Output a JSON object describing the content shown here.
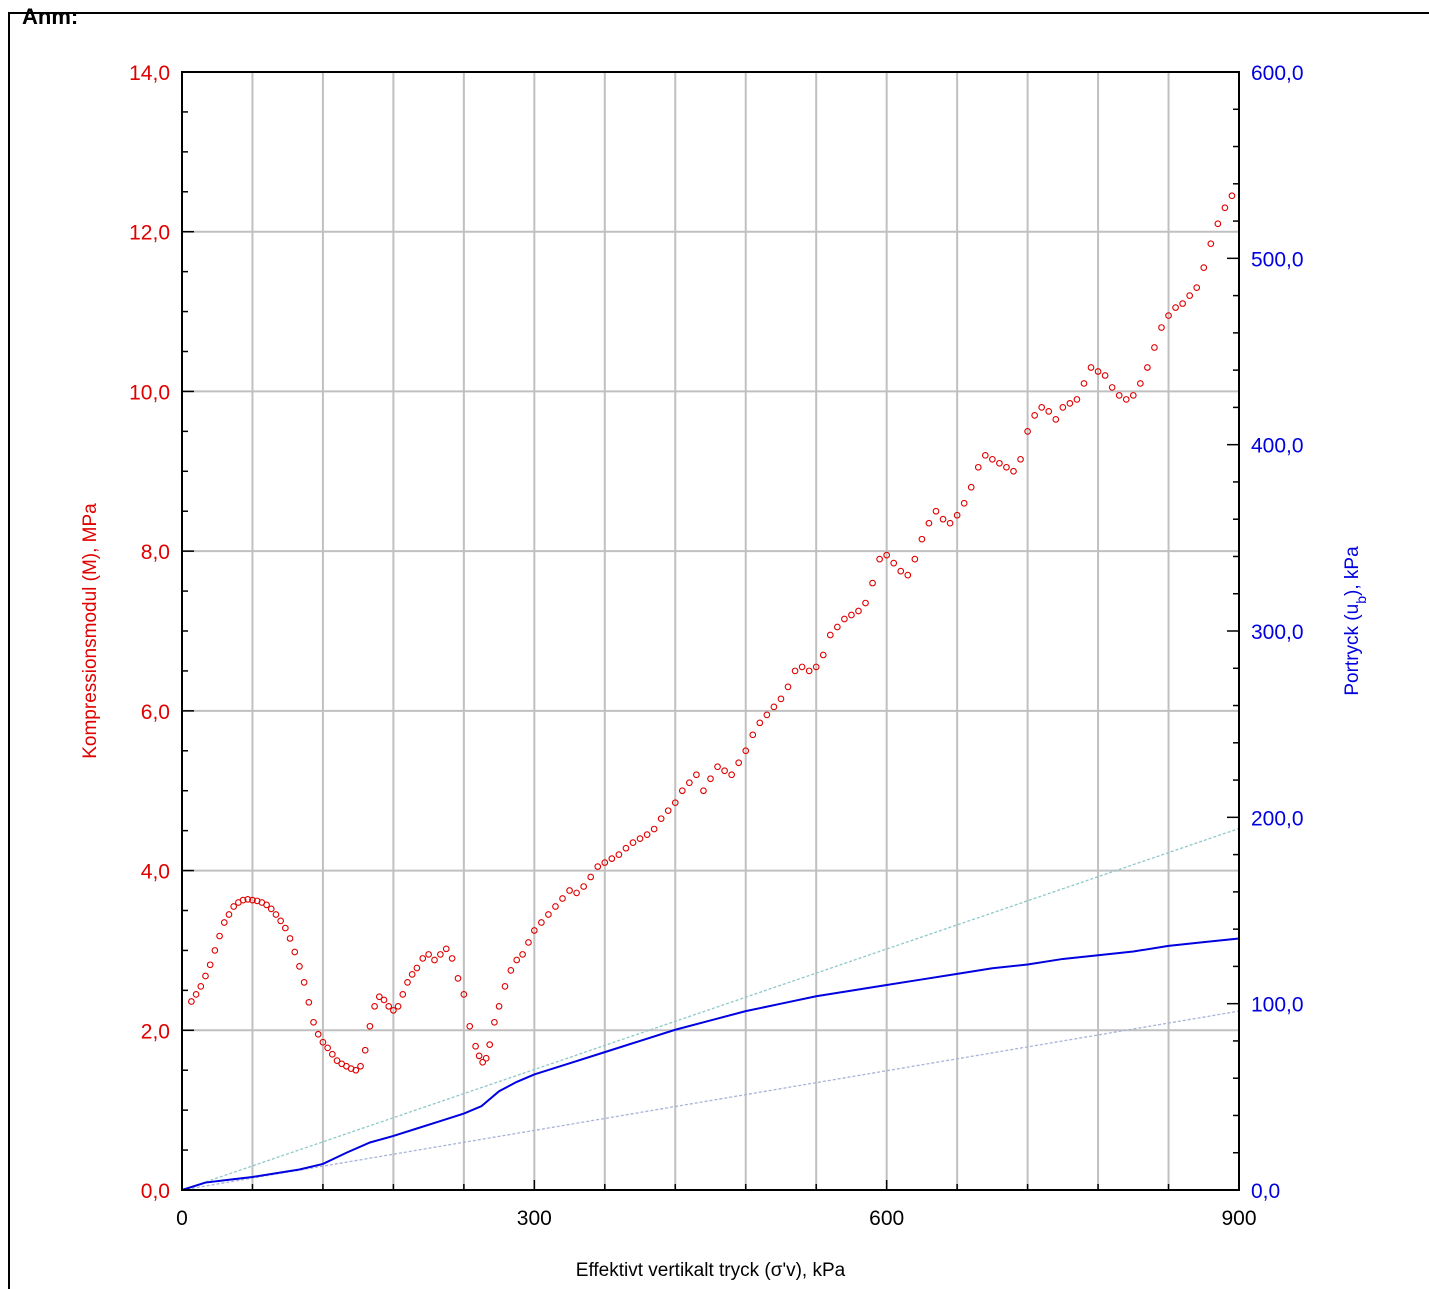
{
  "header": {
    "label": "Anm:"
  },
  "chart_data": {
    "type": "scatter",
    "xlabel": "Effektivt vertikalt tryck (σ'v), kPa",
    "ylabel_left": "Kompressionsmodul (M), MPa",
    "ylabel_right": "Portryck (u_b), kPa",
    "xlim": [
      0,
      900
    ],
    "ylim_left": [
      0,
      14
    ],
    "ylim_right": [
      0,
      600
    ],
    "x_ticks": [
      "0",
      "300",
      "600",
      "900"
    ],
    "y_left_ticks": [
      "0,0",
      "2,0",
      "4,0",
      "6,0",
      "8,0",
      "10,0",
      "12,0",
      "14,0"
    ],
    "y_right_ticks": [
      "0,0",
      "100,0",
      "200,0",
      "300,0",
      "400,0",
      "500,0",
      "600,0"
    ],
    "grid": true,
    "colors": {
      "modulus": "#e00000",
      "pore_pressure": "#0000e0",
      "ref_upper": "#8fc8c8",
      "ref_lower": "#a8b4d8"
    },
    "series": [
      {
        "axis": "left",
        "x": [
          8,
          12,
          16,
          20,
          24,
          28,
          32,
          36,
          40,
          44,
          48,
          52,
          56,
          60,
          64,
          68,
          72,
          76,
          80,
          84,
          88,
          92,
          96,
          100,
          104,
          108,
          112,
          116,
          120,
          124,
          128,
          132,
          136,
          140,
          144,
          148,
          152,
          156,
          160,
          164,
          168,
          172,
          176,
          180,
          184,
          188,
          192,
          196,
          200,
          205,
          210,
          215,
          220,
          225,
          230,
          235,
          240,
          245,
          250,
          253,
          256,
          259,
          262,
          266,
          270,
          275,
          280,
          285,
          290,
          295,
          300,
          306,
          312,
          318,
          324,
          330,
          336,
          342,
          348,
          354,
          360,
          366,
          372,
          378,
          384,
          390,
          396,
          402,
          408,
          414,
          420,
          426,
          432,
          438,
          444,
          450,
          456,
          462,
          468,
          474,
          480,
          486,
          492,
          498,
          504,
          510,
          516,
          522,
          528,
          534,
          540,
          546,
          552,
          558,
          564,
          570,
          576,
          582,
          588,
          594,
          600,
          606,
          612,
          618,
          624,
          630,
          636,
          642,
          648,
          654,
          660,
          666,
          672,
          678,
          684,
          690,
          696,
          702,
          708,
          714,
          720,
          726,
          732,
          738,
          744,
          750,
          756,
          762,
          768,
          774,
          780,
          786,
          792,
          798,
          804,
          810,
          816,
          822,
          828,
          834,
          840,
          846,
          852,
          858,
          864,
          870,
          876,
          882,
          888,
          894
        ],
        "y": [
          2.36,
          2.45,
          2.55,
          2.68,
          2.82,
          3.0,
          3.18,
          3.35,
          3.45,
          3.55,
          3.6,
          3.63,
          3.64,
          3.63,
          3.62,
          3.6,
          3.57,
          3.52,
          3.45,
          3.37,
          3.28,
          3.15,
          2.98,
          2.8,
          2.6,
          2.35,
          2.1,
          1.95,
          1.85,
          1.78,
          1.7,
          1.62,
          1.58,
          1.55,
          1.52,
          1.5,
          1.55,
          1.75,
          2.05,
          2.3,
          2.42,
          2.38,
          2.3,
          2.25,
          2.3,
          2.45,
          2.6,
          2.7,
          2.78,
          2.9,
          2.95,
          2.88,
          2.95,
          3.02,
          2.9,
          2.65,
          2.45,
          2.05,
          1.8,
          1.68,
          1.6,
          1.65,
          1.82,
          2.1,
          2.3,
          2.55,
          2.75,
          2.88,
          2.95,
          3.1,
          3.25,
          3.35,
          3.45,
          3.55,
          3.65,
          3.75,
          3.72,
          3.8,
          3.92,
          4.05,
          4.1,
          4.15,
          4.2,
          4.28,
          4.35,
          4.4,
          4.45,
          4.52,
          4.65,
          4.75,
          4.85,
          5.0,
          5.1,
          5.2,
          5.0,
          5.15,
          5.3,
          5.25,
          5.2,
          5.35,
          5.5,
          5.7,
          5.85,
          5.95,
          6.05,
          6.15,
          6.3,
          6.5,
          6.55,
          6.5,
          6.55,
          6.7,
          6.95,
          7.05,
          7.15,
          7.2,
          7.25,
          7.35,
          7.6,
          7.9,
          7.95,
          7.85,
          7.75,
          7.7,
          7.9,
          8.15,
          8.35,
          8.5,
          8.4,
          8.35,
          8.45,
          8.6,
          8.8,
          9.05,
          9.2,
          9.15,
          9.1,
          9.05,
          9.0,
          9.15,
          9.5,
          9.7,
          9.8,
          9.75,
          9.65,
          9.8,
          9.85,
          9.9,
          10.1,
          10.3,
          10.25,
          10.2,
          10.05,
          9.95,
          9.9,
          9.95,
          10.1,
          10.3,
          10.55,
          10.8,
          10.95,
          11.05,
          11.1,
          11.2,
          11.3,
          11.55,
          11.85,
          12.1,
          12.3,
          12.45
        ]
      },
      {
        "axis": "right",
        "x": [
          0,
          20,
          40,
          60,
          80,
          100,
          120,
          140,
          160,
          180,
          200,
          220,
          240,
          255,
          270,
          285,
          300,
          330,
          360,
          390,
          420,
          450,
          480,
          510,
          540,
          570,
          600,
          630,
          660,
          690,
          720,
          750,
          780,
          810,
          840,
          870,
          900
        ],
        "y": [
          0,
          4,
          5.5,
          7,
          9,
          11,
          14,
          20,
          25.5,
          29,
          33,
          37,
          41,
          45,
          53,
          58,
          62,
          68,
          74,
          80,
          86,
          91,
          96,
          100,
          104,
          107,
          110,
          113,
          116,
          119,
          121,
          124,
          126,
          128,
          131,
          133,
          135
        ]
      },
      {
        "axis": "right",
        "x": [
          0,
          900
        ],
        "y": [
          0,
          194
        ]
      },
      {
        "axis": "right",
        "x": [
          0,
          900
        ],
        "y": [
          0,
          96
        ]
      }
    ]
  }
}
